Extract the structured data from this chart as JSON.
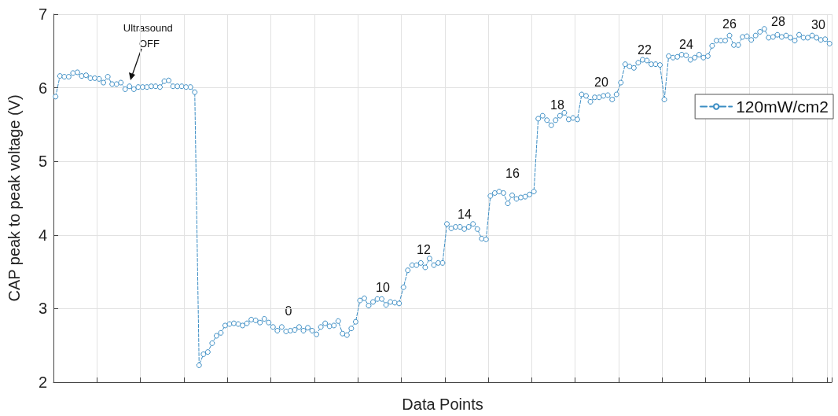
{
  "chart_data": {
    "type": "line",
    "xlabel": "Data Points",
    "ylabel": "CAP peak to peak voltage (V)",
    "categories": [
      null,
      null,
      null,
      null,
      null,
      null,
      null,
      null,
      null,
      null,
      null,
      null,
      null,
      null,
      null,
      null,
      null,
      null,
      null,
      null,
      null,
      null,
      null,
      null,
      null,
      null,
      null,
      null,
      null,
      null,
      null,
      null,
      null,
      null,
      null,
      null,
      null,
      null,
      null,
      null,
      null,
      null,
      null,
      null,
      null,
      null,
      null,
      null,
      null,
      null,
      null,
      null,
      null,
      null,
      null,
      null,
      null,
      null,
      null,
      null,
      null,
      null,
      null,
      null,
      null,
      null,
      null,
      null,
      null,
      null,
      null,
      null,
      null,
      null,
      null,
      null,
      null,
      null,
      null,
      null,
      null,
      null,
      null,
      null,
      null,
      null,
      null,
      null,
      null,
      null,
      null,
      null,
      null,
      null,
      null,
      null,
      null,
      null,
      null,
      null,
      null,
      null,
      null,
      null,
      null,
      null,
      null,
      null,
      null,
      null,
      null,
      null,
      null,
      null,
      null,
      null,
      null,
      null,
      null,
      null,
      null,
      null,
      null,
      null,
      null,
      null,
      null,
      null,
      null,
      null,
      null,
      null,
      null,
      null,
      null,
      null,
      null,
      null,
      null,
      null,
      null,
      null,
      null,
      null,
      null,
      null,
      null,
      null,
      null,
      null,
      null,
      null,
      null,
      null,
      null,
      null,
      null,
      null,
      null,
      null,
      null,
      null,
      null,
      null,
      null,
      null,
      null,
      null,
      null,
      null,
      null,
      null,
      null,
      null,
      null,
      null,
      null,
      null,
      null
    ],
    "series": [
      {
        "name": "120mW/cm2",
        "color": "#3b8dc4",
        "values": [
          5.88,
          6.16,
          6.15,
          6.15,
          6.2,
          6.21,
          6.16,
          6.17,
          6.13,
          6.13,
          6.12,
          6.07,
          6.15,
          6.05,
          6.05,
          6.07,
          5.98,
          6.02,
          5.98,
          6.01,
          6.01,
          6.01,
          6.02,
          6.02,
          6.01,
          6.09,
          6.1,
          6.02,
          6.02,
          6.02,
          6.01,
          6.01,
          5.94,
          2.23,
          2.38,
          2.41,
          2.53,
          2.63,
          2.67,
          2.77,
          2.79,
          2.8,
          2.79,
          2.77,
          2.8,
          2.85,
          2.84,
          2.81,
          2.86,
          2.81,
          2.75,
          2.7,
          2.75,
          2.69,
          2.7,
          2.71,
          2.75,
          2.7,
          2.74,
          2.7,
          2.65,
          2.75,
          2.8,
          2.76,
          2.77,
          2.83,
          2.66,
          2.64,
          2.73,
          2.82,
          3.11,
          3.14,
          3.04,
          3.09,
          3.13,
          3.13,
          3.05,
          3.09,
          3.08,
          3.07,
          3.29,
          3.52,
          3.59,
          3.59,
          3.62,
          3.56,
          3.68,
          3.59,
          3.62,
          3.62,
          4.15,
          4.09,
          4.11,
          4.11,
          4.08,
          4.11,
          4.15,
          4.08,
          3.95,
          3.94,
          4.53,
          4.57,
          4.59,
          4.57,
          4.43,
          4.54,
          4.49,
          4.51,
          4.52,
          4.55,
          4.59,
          5.58,
          5.62,
          5.56,
          5.49,
          5.56,
          5.62,
          5.66,
          5.57,
          5.59,
          5.57,
          5.91,
          5.89,
          5.81,
          5.87,
          5.87,
          5.89,
          5.9,
          5.84,
          5.91,
          6.07,
          6.32,
          6.29,
          6.27,
          6.34,
          6.38,
          6.37,
          6.32,
          6.32,
          6.31,
          5.84,
          6.43,
          6.41,
          6.42,
          6.45,
          6.44,
          6.38,
          6.41,
          6.45,
          6.41,
          6.43,
          6.57,
          6.64,
          6.64,
          6.64,
          6.71,
          6.58,
          6.58,
          6.69,
          6.7,
          6.65,
          6.71,
          6.76,
          6.8,
          6.68,
          6.69,
          6.72,
          6.69,
          6.71,
          6.68,
          6.64,
          6.72,
          6.68,
          6.68,
          6.71,
          6.68,
          6.65,
          6.66,
          6.6
        ]
      }
    ],
    "ylim": [
      2,
      7
    ],
    "yticks": [
      2,
      3,
      4,
      5,
      6,
      7
    ],
    "grid": true,
    "legend": "right",
    "marker": "circle",
    "line_style": "dashed",
    "annotations": [
      "Ultrasound OFF",
      "0",
      "10",
      "12",
      "14",
      "16",
      "18",
      "20",
      "22",
      "24",
      "26",
      "28",
      "30"
    ]
  }
}
